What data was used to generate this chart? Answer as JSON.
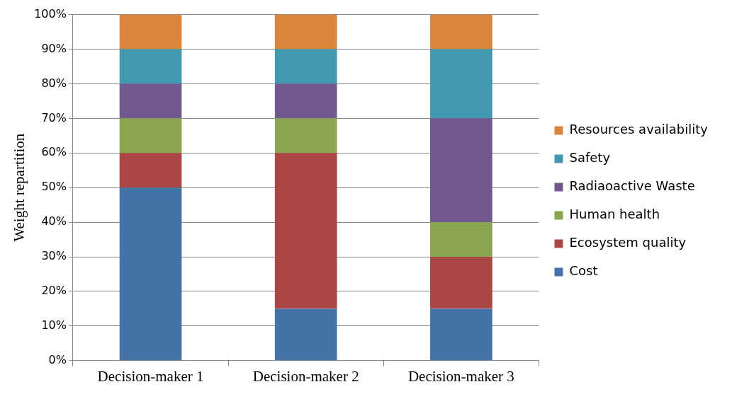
{
  "chart_data": {
    "type": "bar",
    "stacked": true,
    "ylabel": "Weight repartition",
    "categories": [
      "Decision-maker 1",
      "Decision-maker 2",
      "Decision-maker 3"
    ],
    "series": [
      {
        "name": "Cost",
        "color": "#4572a7",
        "values": [
          50,
          15,
          15
        ]
      },
      {
        "name": "Ecosystem quality",
        "color": "#aa4643",
        "values": [
          10,
          45,
          15
        ]
      },
      {
        "name": "Human health",
        "color": "#89a54e",
        "values": [
          10,
          10,
          10
        ]
      },
      {
        "name": "Radiaoactive Waste",
        "color": "#71588f",
        "values": [
          10,
          10,
          30
        ]
      },
      {
        "name": "Safety",
        "color": "#4198af",
        "values": [
          10,
          10,
          20
        ]
      },
      {
        "name": "Resources availability",
        "color": "#db843d",
        "values": [
          10,
          10,
          10
        ]
      }
    ],
    "ylim": [
      0,
      100
    ],
    "yticks": [
      {
        "value": 0,
        "label": "0%"
      },
      {
        "value": 10,
        "label": "10%"
      },
      {
        "value": 20,
        "label": "20%"
      },
      {
        "value": 30,
        "label": "30%"
      },
      {
        "value": 40,
        "label": "40%"
      },
      {
        "value": 50,
        "label": "50%"
      },
      {
        "value": 60,
        "label": "60%"
      },
      {
        "value": 70,
        "label": "70%"
      },
      {
        "value": 80,
        "label": "80%"
      },
      {
        "value": 90,
        "label": "90%"
      },
      {
        "value": 100,
        "label": "100%"
      }
    ],
    "grid": "y",
    "legend": "right"
  }
}
